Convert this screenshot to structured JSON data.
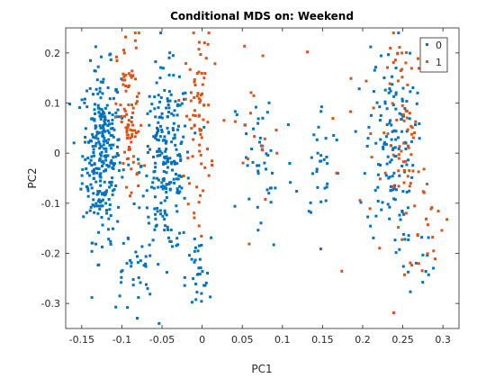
{
  "chart_data": {
    "type": "scatter",
    "title": "Conditional MDS on: Weekend",
    "xlabel": "PC1",
    "ylabel": "PC2",
    "xlim": [
      -0.17,
      0.32
    ],
    "ylim": [
      -0.35,
      0.25
    ],
    "xticks": [
      -0.15,
      -0.1,
      -0.05,
      0,
      0.05,
      0.1,
      0.15,
      0.2,
      0.25,
      0.3
    ],
    "xtick_labels": [
      "-0.15",
      "-0.1",
      "-0.05",
      "0",
      "0.05",
      "0.1",
      "0.15",
      "0.2",
      "0.25",
      "0.3"
    ],
    "yticks": [
      0.2,
      0.1,
      0,
      -0.1,
      -0.2,
      -0.3
    ],
    "ytick_labels": [
      "0.2",
      "0.1",
      "0",
      "-0.1",
      "-0.2",
      "-0.3"
    ],
    "legend": {
      "position": "top-right"
    },
    "grid": false,
    "series": [
      {
        "name": "0",
        "color": "#0072BD",
        "clusters": [
          {
            "cx": -0.125,
            "cy": 0.0,
            "sx": 0.012,
            "sy": 0.085,
            "n": 300
          },
          {
            "cx": -0.045,
            "cy": -0.02,
            "sx": 0.015,
            "sy": 0.09,
            "n": 240
          },
          {
            "cx": -0.09,
            "cy": -0.24,
            "sx": 0.015,
            "sy": 0.04,
            "n": 30
          },
          {
            "cx": -0.005,
            "cy": -0.25,
            "sx": 0.008,
            "sy": 0.04,
            "n": 30
          },
          {
            "cx": 0.075,
            "cy": -0.02,
            "sx": 0.02,
            "sy": 0.09,
            "n": 45
          },
          {
            "cx": 0.15,
            "cy": -0.02,
            "sx": 0.012,
            "sy": 0.06,
            "n": 30
          },
          {
            "cx": 0.235,
            "cy": 0.02,
            "sx": 0.015,
            "sy": 0.1,
            "n": 140
          },
          {
            "cx": 0.265,
            "cy": -0.21,
            "sx": 0.012,
            "sy": 0.03,
            "n": 15
          }
        ]
      },
      {
        "name": "1",
        "color": "#D95319",
        "clusters": [
          {
            "cx": -0.09,
            "cy": 0.06,
            "sx": 0.008,
            "sy": 0.09,
            "n": 85
          },
          {
            "cx": -0.005,
            "cy": 0.07,
            "sx": 0.008,
            "sy": 0.09,
            "n": 75
          },
          {
            "cx": 0.07,
            "cy": 0.07,
            "sx": 0.025,
            "sy": 0.08,
            "n": 18
          },
          {
            "cx": 0.195,
            "cy": 0.0,
            "sx": 0.04,
            "sy": 0.09,
            "n": 18
          },
          {
            "cx": 0.255,
            "cy": 0.02,
            "sx": 0.012,
            "sy": 0.12,
            "n": 70
          },
          {
            "cx": 0.285,
            "cy": -0.15,
            "sx": 0.012,
            "sy": 0.04,
            "n": 14
          }
        ]
      }
    ]
  }
}
